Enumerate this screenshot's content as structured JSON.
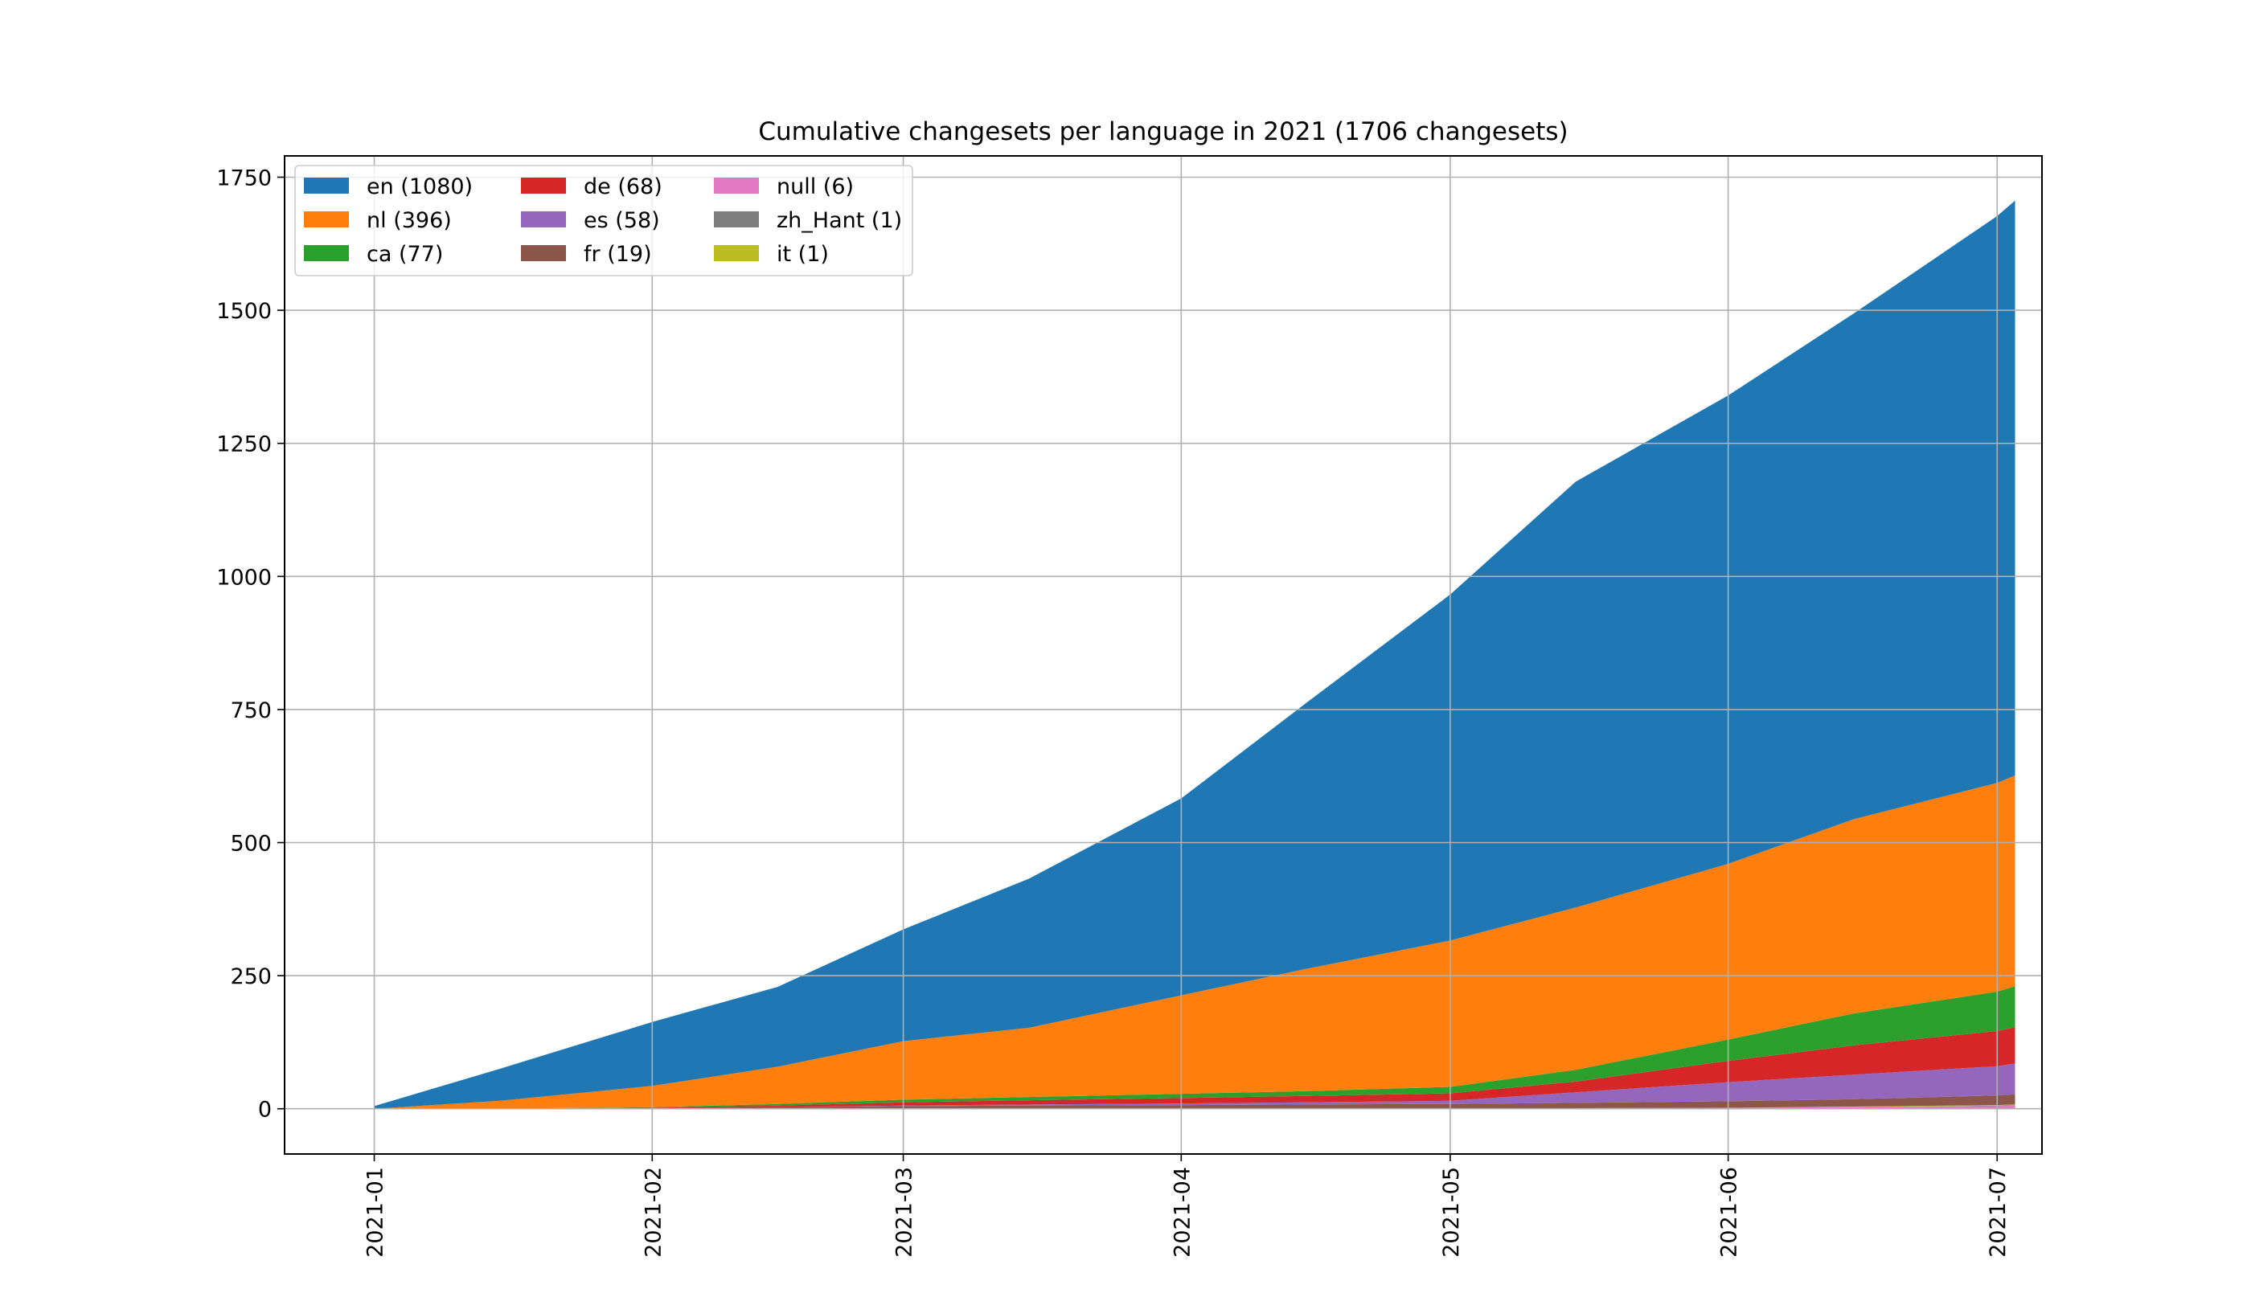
{
  "chart_data": {
    "type": "area",
    "stacked": true,
    "title": "Cumulative changesets per language in 2021 (1706 changesets)",
    "xlabel": "",
    "ylabel": "",
    "x_axis": "date",
    "x_ticks": [
      "2021-01",
      "2021-02",
      "2021-03",
      "2021-04",
      "2021-05",
      "2021-06",
      "2021-07"
    ],
    "xlim": [
      "2020-12-22",
      "2021-07-06"
    ],
    "y_ticks": [
      0,
      250,
      500,
      750,
      1000,
      1250,
      1500,
      1750
    ],
    "ylim": [
      -85,
      1790
    ],
    "grid": true,
    "legend": {
      "placement": "top-left",
      "columns": 3
    },
    "x": [
      "2021-01-01",
      "2021-01-15",
      "2021-02-01",
      "2021-02-15",
      "2021-03-01",
      "2021-03-15",
      "2021-04-01",
      "2021-04-15",
      "2021-05-01",
      "2021-05-15",
      "2021-06-01",
      "2021-06-15",
      "2021-07-01",
      "2021-07-03"
    ],
    "series": [
      {
        "name": "null",
        "label": "null (6)",
        "color": "#e377c2",
        "values": [
          0,
          0,
          0,
          0,
          0,
          0,
          0,
          0,
          0,
          1,
          2,
          3,
          5,
          6
        ]
      },
      {
        "name": "zh_Hant",
        "label": "zh_Hant (1)",
        "color": "#7f7f7f",
        "values": [
          0,
          0,
          0,
          0,
          0,
          0,
          0,
          0,
          0,
          0,
          0,
          0,
          1,
          1
        ]
      },
      {
        "name": "it",
        "label": "it (1)",
        "color": "#bcbd22",
        "values": [
          0,
          0,
          0,
          0,
          0,
          0,
          0,
          0,
          0,
          0,
          0,
          1,
          1,
          1
        ]
      },
      {
        "name": "fr",
        "label": "fr (19)",
        "color": "#8c564b",
        "values": [
          0,
          0,
          1,
          3,
          5,
          6,
          7,
          8,
          9,
          10,
          12,
          14,
          18,
          19
        ]
      },
      {
        "name": "es",
        "label": "es (58)",
        "color": "#9467bd",
        "values": [
          0,
          0,
          0,
          0,
          1,
          2,
          3,
          4,
          6,
          20,
          36,
          46,
          55,
          58
        ]
      },
      {
        "name": "de",
        "label": "de (68)",
        "color": "#d62728",
        "values": [
          0,
          0,
          1,
          3,
          6,
          8,
          10,
          12,
          14,
          20,
          40,
          55,
          66,
          68
        ]
      },
      {
        "name": "ca",
        "label": "ca (77)",
        "color": "#2ca02c",
        "values": [
          0,
          0,
          1,
          3,
          5,
          6,
          8,
          9,
          12,
          22,
          40,
          60,
          74,
          77
        ]
      },
      {
        "name": "nl",
        "label": "nl (396)",
        "color": "#ff7f0e",
        "values": [
          0,
          15,
          40,
          70,
          110,
          130,
          185,
          230,
          275,
          305,
          330,
          365,
          392,
          396
        ]
      },
      {
        "name": "en",
        "label": "en (1080)",
        "color": "#1f77b4",
        "values": [
          5,
          60,
          120,
          150,
          210,
          280,
          370,
          500,
          650,
          800,
          880,
          950,
          1065,
          1080
        ]
      }
    ],
    "legend_order": [
      "en",
      "nl",
      "ca",
      "de",
      "es",
      "fr",
      "null",
      "zh_Hant",
      "it"
    ]
  }
}
